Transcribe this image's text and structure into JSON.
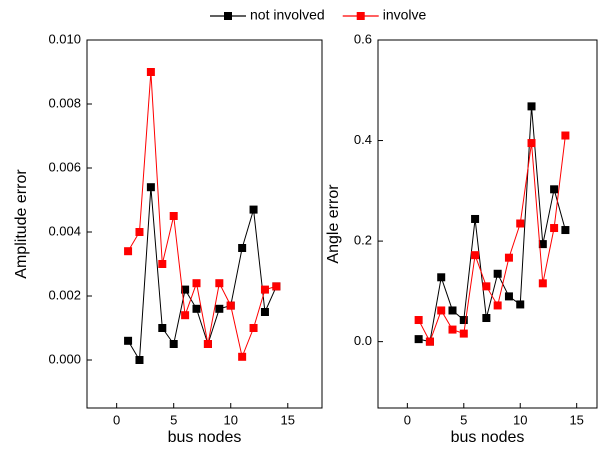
{
  "legend": {
    "position": "top"
  },
  "chart_data": [
    {
      "type": "line",
      "xlabel": "bus nodes",
      "ylabel": "Amplitude error",
      "xlim": [
        -2.6,
        18
      ],
      "xticks": [
        0,
        5,
        10,
        15
      ],
      "ylim": [
        -0.0015,
        0.01
      ],
      "yticks": [
        {
          "value": 0,
          "label": "0.000"
        },
        {
          "value": 0.002,
          "label": "0.002"
        },
        {
          "value": 0.004,
          "label": "0.004"
        },
        {
          "value": 0.006,
          "label": "0.006"
        },
        {
          "value": 0.008,
          "label": "0.008"
        },
        {
          "value": 0.01,
          "label": "0.010"
        }
      ],
      "x": [
        1,
        2,
        3,
        4,
        5,
        6,
        7,
        8,
        9,
        10,
        11,
        12,
        13,
        14
      ],
      "series": [
        {
          "name": "not involved",
          "color": "#000000",
          "values": [
            0.0006,
            0.0,
            0.0054,
            0.001,
            0.0005,
            0.0022,
            0.0016,
            0.0005,
            0.0016,
            0.0017,
            0.0035,
            0.0047,
            0.0015,
            0.0023
          ]
        },
        {
          "name": "involve",
          "color": "#ff0000",
          "values": [
            0.0034,
            0.004,
            0.009,
            0.003,
            0.0045,
            0.0014,
            0.0024,
            0.0005,
            0.0024,
            0.0017,
            0.0001,
            0.001,
            0.0022,
            0.0023
          ]
        }
      ]
    },
    {
      "type": "line",
      "xlabel": "bus nodes",
      "ylabel": "Angle error",
      "xlim": [
        -2.6,
        16.8
      ],
      "xticks": [
        0,
        5,
        10,
        15
      ],
      "ylim": [
        -0.132,
        0.6
      ],
      "yticks": [
        {
          "value": 0,
          "label": "0.0"
        },
        0.2,
        0.4,
        0.6
      ],
      "x": [
        1,
        2,
        3,
        4,
        5,
        6,
        7,
        8,
        9,
        10,
        11,
        12,
        13,
        14
      ],
      "series": [
        {
          "color": "#000000",
          "values": [
            0.005,
            0.0,
            0.128,
            0.062,
            0.043,
            0.244,
            0.047,
            0.135,
            0.09,
            0.074,
            0.468,
            0.194,
            0.303,
            0.222
          ]
        },
        {
          "color": "#ff0000",
          "values": [
            0.043,
            0.0,
            0.062,
            0.024,
            0.016,
            0.172,
            0.11,
            0.072,
            0.167,
            0.235,
            0.395,
            0.116,
            0.226,
            0.41
          ]
        }
      ]
    }
  ]
}
